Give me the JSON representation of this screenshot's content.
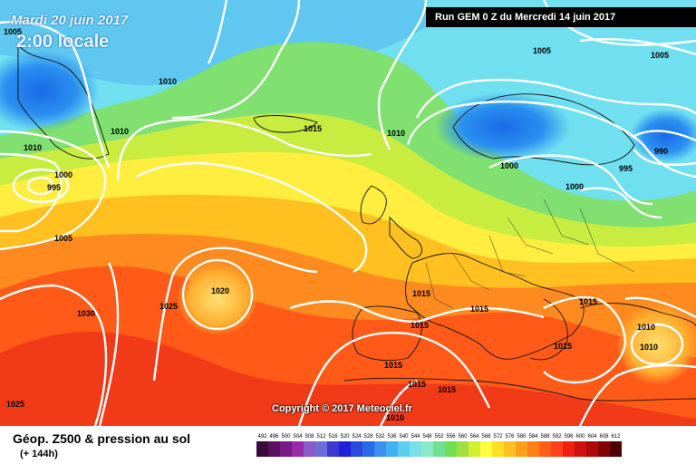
{
  "header": {
    "date": "Mardi 20 juin 2017",
    "time": "2:00 locale",
    "run": "Run GEM 0 Z du Mercredi 14 juin 2017"
  },
  "copyright": "Copyright © 2017 Meteociel.fr",
  "footer": {
    "title": "Géop. Z500 & pression au sol",
    "subtitle": "(+ 144h)"
  },
  "legend": {
    "values": [
      "492",
      "496",
      "500",
      "504",
      "508",
      "512",
      "516",
      "520",
      "524",
      "528",
      "532",
      "536",
      "540",
      "544",
      "548",
      "552",
      "556",
      "560",
      "564",
      "568",
      "572",
      "576",
      "580",
      "584",
      "588",
      "592",
      "596",
      "600",
      "604",
      "608",
      "612"
    ],
    "colors": [
      "#3a0a3a",
      "#5a1060",
      "#7a1a86",
      "#9a2aa8",
      "#8a5ac8",
      "#6a70d8",
      "#3a3ad0",
      "#2020d8",
      "#2a4ae0",
      "#2a6ae8",
      "#3a90f0",
      "#40b0f0",
      "#5ad0f0",
      "#7ae0e8",
      "#8aeac8",
      "#70e090",
      "#70e050",
      "#a0e040",
      "#d0f030",
      "#ffff40",
      "#ffe020",
      "#ffc020",
      "#ffa018",
      "#ff8018",
      "#ff6018",
      "#ff4018",
      "#f02010",
      "#d01010",
      "#b00808",
      "#800404",
      "#500000"
    ]
  },
  "isobars": [
    {
      "label": "1005",
      "emphasis": false
    },
    {
      "label": "1010",
      "emphasis": false
    },
    {
      "label": "1010",
      "emphasis": false
    },
    {
      "label": "1010",
      "emphasis": false
    },
    {
      "label": "1000",
      "emphasis": false
    },
    {
      "label": "995",
      "emphasis": false
    },
    {
      "label": "1005",
      "emphasis": false
    },
    {
      "label": "1015",
      "emphasis": false
    },
    {
      "label": "1010",
      "emphasis": false
    },
    {
      "label": "1005",
      "emphasis": false
    },
    {
      "label": "1005",
      "emphasis": false
    },
    {
      "label": "1000",
      "emphasis": false
    },
    {
      "label": "1000",
      "emphasis": false
    },
    {
      "label": "995",
      "emphasis": false
    },
    {
      "label": "990",
      "emphasis": false
    },
    {
      "label": "1020",
      "emphasis": false
    },
    {
      "label": "1025",
      "emphasis": false
    },
    {
      "label": "1030",
      "emphasis": false
    },
    {
      "label": "1025",
      "emphasis": false
    },
    {
      "label": "1015",
      "emphasis": false
    },
    {
      "label": "1015",
      "emphasis": false
    },
    {
      "label": "1015",
      "emphasis": false
    },
    {
      "label": "1015",
      "emphasis": false
    },
    {
      "label": "1015",
      "emphasis": false
    },
    {
      "label": "1015",
      "emphasis": false
    },
    {
      "label": "1015",
      "emphasis": false
    },
    {
      "label": "1015",
      "emphasis": false
    },
    {
      "label": "1010",
      "emphasis": false
    },
    {
      "label": "1010",
      "emphasis": false
    },
    {
      "label": "1010",
      "emphasis": false
    },
    {
      "label": "1010",
      "emphasis": false
    }
  ]
}
